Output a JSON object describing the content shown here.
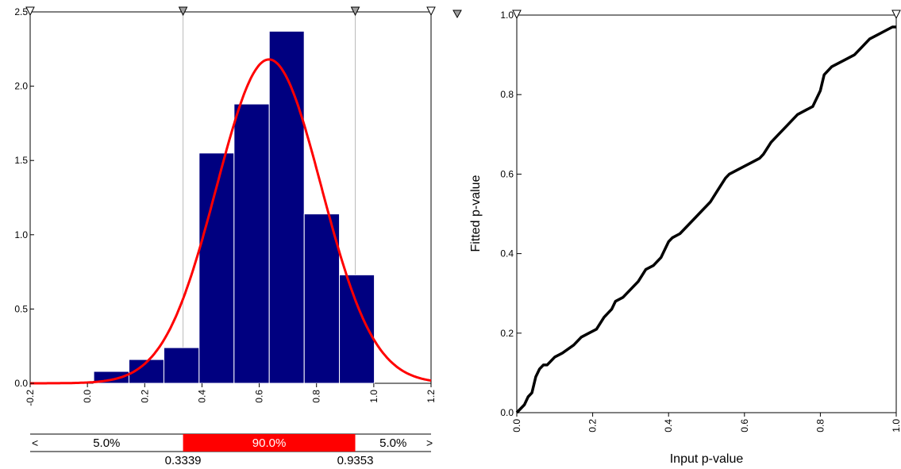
{
  "colors": {
    "bar_fill": "#000080",
    "fit_curve": "#ff0000",
    "pp_line": "#000000",
    "delimiter_band": "#ff0000",
    "marker_fill": "#a0a0a0"
  },
  "icons": {
    "top_marker": "triangle-down-icon",
    "left_arrow": "chevron-left-icon",
    "right_arrow": "chevron-right-icon"
  },
  "delimiters": {
    "left_arrow": "<",
    "right_arrow": ">",
    "left_pct": "5.0%",
    "middle_pct": "90.0%",
    "right_pct": "5.0%",
    "left_value": "0.3339",
    "right_value": "0.9353"
  },
  "chart_data": [
    {
      "type": "bar",
      "title": "",
      "xlabel": "",
      "ylabel": "",
      "xlim": [
        -0.2,
        1.2
      ],
      "ylim": [
        0,
        2.5
      ],
      "x_ticks": [
        "-0.2",
        "0.0",
        "0.2",
        "0.4",
        "0.6",
        "0.8",
        "1.0",
        "1.2"
      ],
      "y_ticks": [
        "0.0",
        "0.5",
        "1.0",
        "1.5",
        "2.0",
        "2.5"
      ],
      "bins": [
        {
          "x0": 0.022,
          "x1": 0.145,
          "value": 0.08
        },
        {
          "x0": 0.145,
          "x1": 0.267,
          "value": 0.16
        },
        {
          "x0": 0.267,
          "x1": 0.39,
          "value": 0.24
        },
        {
          "x0": 0.39,
          "x1": 0.512,
          "value": 1.55
        },
        {
          "x0": 0.512,
          "x1": 0.635,
          "value": 1.88
        },
        {
          "x0": 0.635,
          "x1": 0.757,
          "value": 2.37
        },
        {
          "x0": 0.757,
          "x1": 0.88,
          "value": 1.14
        },
        {
          "x0": 0.88,
          "x1": 1.002,
          "value": 0.73
        }
      ],
      "fit_curve": {
        "type": "normal",
        "mean": 0.634,
        "sd": 0.183
      },
      "markers_x": [
        -0.2,
        0.3339,
        0.9353,
        1.2
      ]
    },
    {
      "type": "line",
      "title": "",
      "xlabel": "Input p-value",
      "ylabel": "Fitted p-value",
      "xlim": [
        0,
        1
      ],
      "ylim": [
        0,
        1
      ],
      "x_ticks": [
        "0.0",
        "0.2",
        "0.4",
        "0.6",
        "0.8",
        "1.0"
      ],
      "y_ticks": [
        "0.0",
        "0.2",
        "0.4",
        "0.6",
        "0.8",
        "1.0"
      ],
      "x": [
        0.0,
        0.01,
        0.02,
        0.03,
        0.04,
        0.05,
        0.06,
        0.07,
        0.08,
        0.1,
        0.12,
        0.15,
        0.17,
        0.19,
        0.21,
        0.23,
        0.25,
        0.26,
        0.28,
        0.3,
        0.32,
        0.34,
        0.36,
        0.38,
        0.4,
        0.41,
        0.43,
        0.45,
        0.47,
        0.49,
        0.51,
        0.53,
        0.55,
        0.56,
        0.58,
        0.6,
        0.62,
        0.64,
        0.65,
        0.67,
        0.69,
        0.71,
        0.73,
        0.74,
        0.76,
        0.78,
        0.79,
        0.8,
        0.81,
        0.83,
        0.85,
        0.87,
        0.89,
        0.91,
        0.93,
        0.95,
        0.97,
        0.99,
        1.0
      ],
      "y": [
        0.0,
        0.01,
        0.02,
        0.04,
        0.05,
        0.09,
        0.11,
        0.12,
        0.12,
        0.14,
        0.15,
        0.17,
        0.19,
        0.2,
        0.21,
        0.24,
        0.26,
        0.28,
        0.29,
        0.31,
        0.33,
        0.36,
        0.37,
        0.39,
        0.43,
        0.44,
        0.45,
        0.47,
        0.49,
        0.51,
        0.53,
        0.56,
        0.59,
        0.6,
        0.61,
        0.62,
        0.63,
        0.64,
        0.65,
        0.68,
        0.7,
        0.72,
        0.74,
        0.75,
        0.76,
        0.77,
        0.79,
        0.81,
        0.85,
        0.87,
        0.88,
        0.89,
        0.9,
        0.92,
        0.94,
        0.95,
        0.96,
        0.97,
        0.97
      ]
    }
  ]
}
